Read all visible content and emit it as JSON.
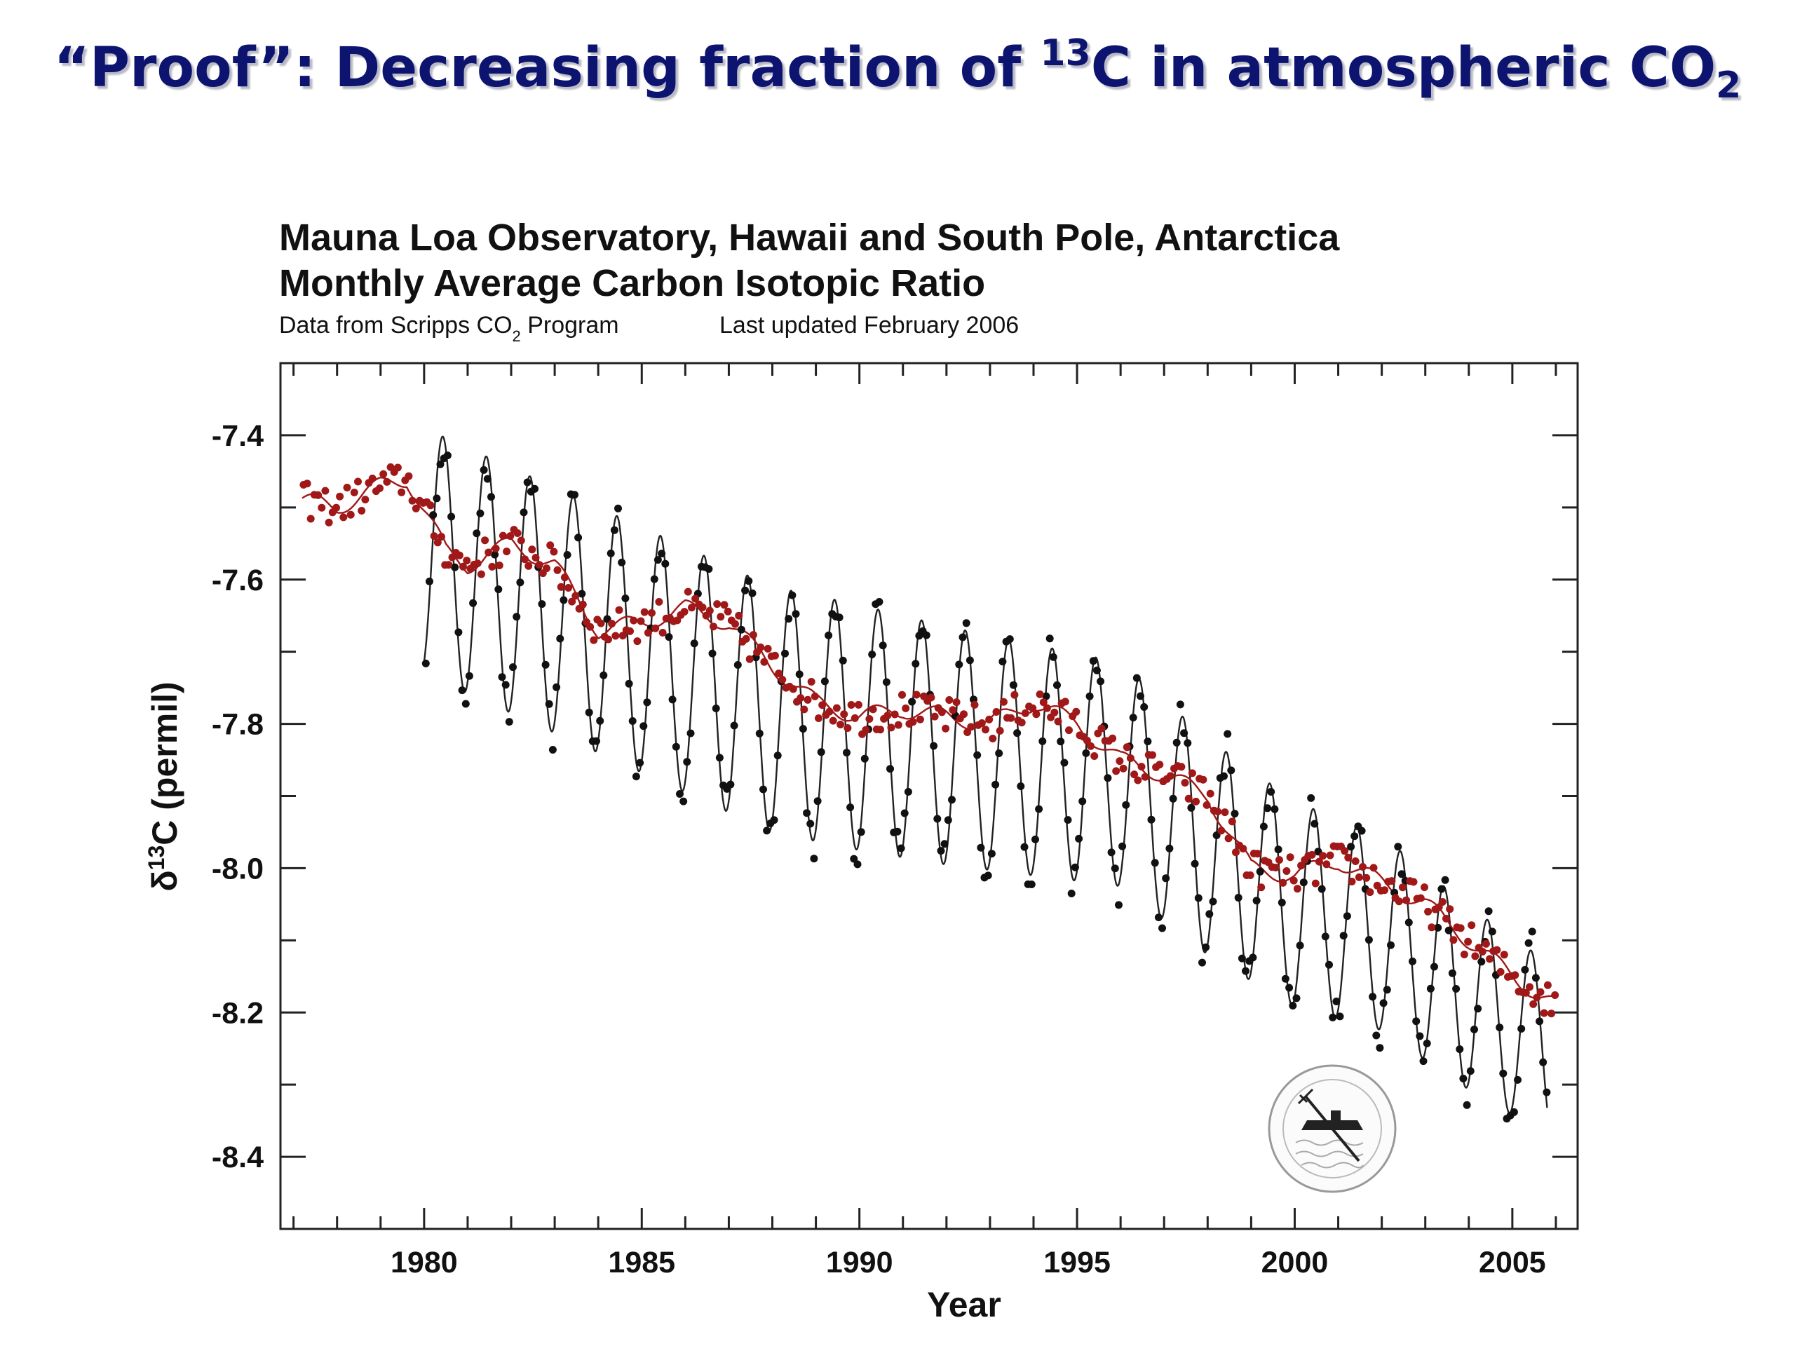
{
  "slide": {
    "title_prefix": "“Proof”: Decreasing fraction of ",
    "title_sup": "13",
    "title_mid": "C in atmospheric CO",
    "title_sub": "2"
  },
  "chart_data": {
    "type": "scatter",
    "title_line1": "Mauna Loa Observatory, Hawaii and South Pole, Antarctica",
    "title_line2": "Monthly Average Carbon Isotopic Ratio",
    "source_prefix": "Data from Scripps CO",
    "source_sub": "2",
    "source_suffix": " Program",
    "updated": "Last updated February 2006",
    "xlabel": "Year",
    "ylabel_prefix": "δ",
    "ylabel_sup": "13",
    "ylabel_suffix": "C (permil)",
    "xlim": [
      1976.7,
      2006.5
    ],
    "ylim": [
      -8.5,
      -7.3
    ],
    "x_ticks": [
      1980,
      1985,
      1990,
      1995,
      2000,
      2005
    ],
    "x_tick_labels": [
      "1980",
      "1985",
      "1990",
      "1995",
      "2000",
      "2005"
    ],
    "y_ticks": [
      -7.4,
      -7.6,
      -7.8,
      -8.0,
      -8.2,
      -8.4
    ],
    "y_tick_labels": [
      "-7.4",
      "-7.6",
      "-7.8",
      "-8.0",
      "-8.2",
      "-8.4"
    ],
    "grid": false,
    "legend": "none",
    "logo": "scripps-institution-seal",
    "series": [
      {
        "station": "Mauna Loa",
        "color": "#111111",
        "style": "points with seasonal fit curve",
        "x_range": [
          1980.0,
          2005.8
        ],
        "trend": [
          [
            1980.0,
            -7.56
          ],
          [
            1984.0,
            -7.67
          ],
          [
            1988.0,
            -7.78
          ],
          [
            1992.0,
            -7.83
          ],
          [
            1996.0,
            -7.87
          ],
          [
            1998.0,
            -7.97
          ],
          [
            2000.0,
            -8.05
          ],
          [
            2002.0,
            -8.09
          ],
          [
            2004.0,
            -8.18
          ],
          [
            2005.8,
            -8.25
          ]
        ],
        "seasonal_amplitude": [
          [
            1980.0,
            0.17
          ],
          [
            1990.0,
            0.17
          ],
          [
            1998.0,
            0.15
          ],
          [
            2005.8,
            0.12
          ]
        ]
      },
      {
        "station": "South Pole",
        "color": "#a01818",
        "style": "points with smoothed curve",
        "x_range": [
          1977.2,
          2006.0
        ],
        "trend": [
          [
            1977.2,
            -7.49
          ],
          [
            1978.0,
            -7.5
          ],
          [
            1979.0,
            -7.47
          ],
          [
            1979.6,
            -7.46
          ],
          [
            1980.5,
            -7.56
          ],
          [
            1981.0,
            -7.58
          ],
          [
            1982.0,
            -7.55
          ],
          [
            1983.0,
            -7.58
          ],
          [
            1984.0,
            -7.67
          ],
          [
            1985.0,
            -7.66
          ],
          [
            1986.0,
            -7.64
          ],
          [
            1987.0,
            -7.66
          ],
          [
            1988.0,
            -7.72
          ],
          [
            1989.0,
            -7.77
          ],
          [
            1990.0,
            -7.79
          ],
          [
            1991.0,
            -7.78
          ],
          [
            1992.0,
            -7.79
          ],
          [
            1993.0,
            -7.8
          ],
          [
            1994.0,
            -7.77
          ],
          [
            1995.0,
            -7.8
          ],
          [
            1996.0,
            -7.85
          ],
          [
            1997.0,
            -7.87
          ],
          [
            1998.0,
            -7.9
          ],
          [
            1999.0,
            -8.0
          ],
          [
            2000.0,
            -8.01
          ],
          [
            2001.0,
            -7.99
          ],
          [
            2002.0,
            -8.02
          ],
          [
            2003.0,
            -8.05
          ],
          [
            2004.0,
            -8.1
          ],
          [
            2005.0,
            -8.15
          ],
          [
            2006.0,
            -8.19
          ]
        ]
      }
    ]
  }
}
